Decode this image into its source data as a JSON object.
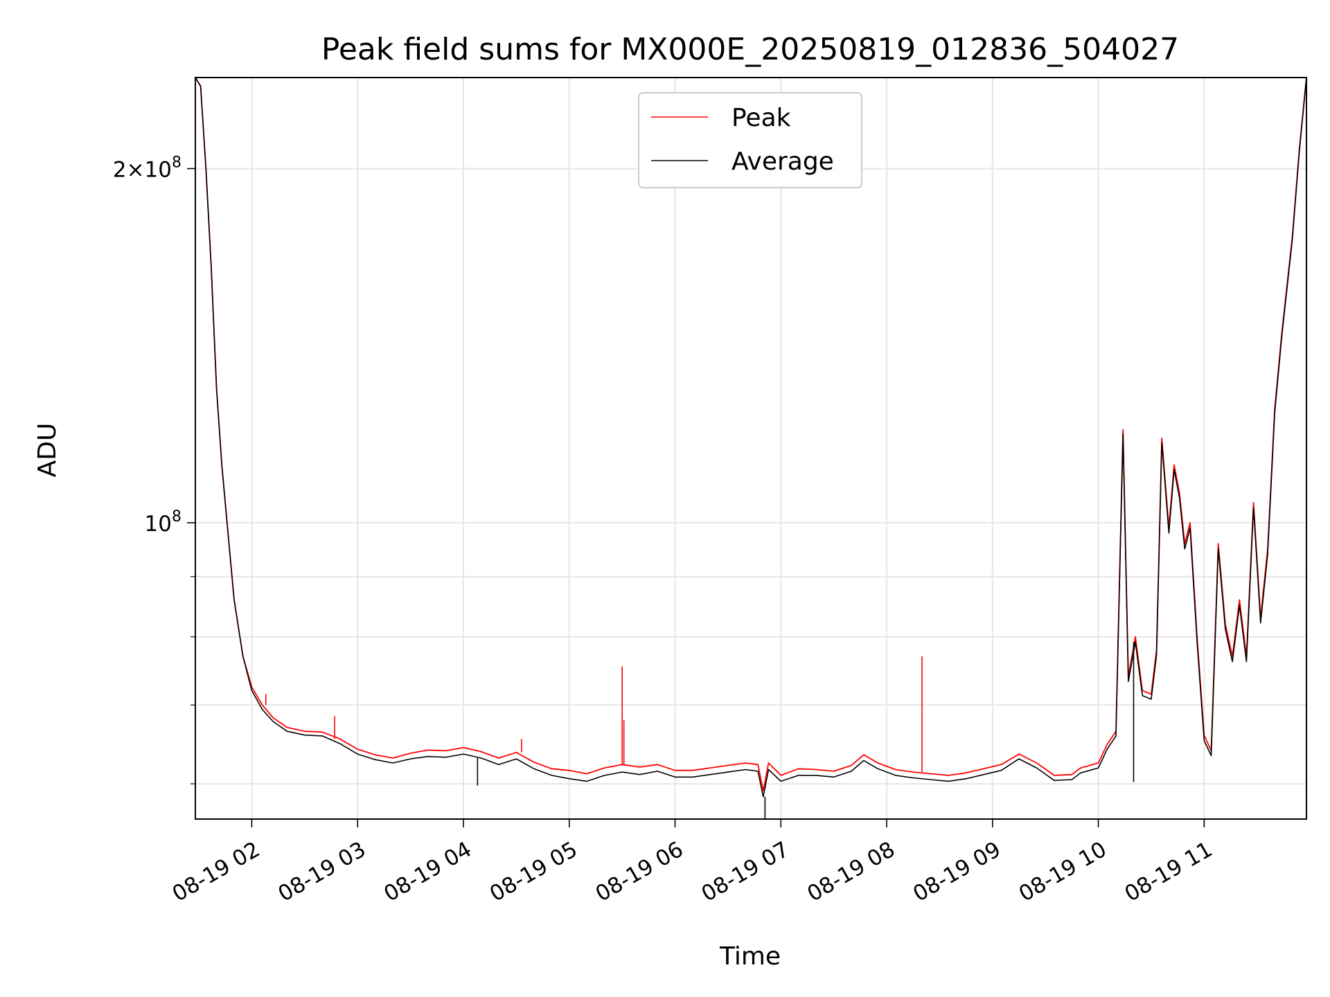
{
  "chart_data": {
    "type": "line",
    "title": "Peak field sums for MX000E_20250819_012836_504027",
    "xlabel": "Time",
    "ylabel": "ADU",
    "yscale": "log",
    "grid": true,
    "legend_placement": "top-center",
    "x_tick_labels": [
      "08-19 02",
      "08-19 03",
      "08-19 04",
      "08-19 05",
      "08-19 06",
      "08-19 07",
      "08-19 08",
      "08-19 09",
      "08-19 10",
      "08-19 11"
    ],
    "y_tick_labels": [
      {
        "value": 200000000,
        "mantissa": "2",
        "times": "×",
        "base": "10",
        "exp": "8"
      },
      {
        "value": 100000000,
        "mantissa": "",
        "times": "",
        "base": "10",
        "exp": "8"
      }
    ],
    "xlim": [
      "2025-08-19 01:28",
      "2025-08-19 11:58"
    ],
    "ylim": [
      56000000,
      239000000
    ],
    "series": [
      {
        "name": "Peak",
        "color": "#ff0000",
        "points": [
          [
            "2025-08-19 01:28",
            239000000
          ],
          [
            "2025-08-19 01:31",
            235000000
          ],
          [
            "2025-08-19 01:34",
            200000000
          ],
          [
            "2025-08-19 01:37",
            165000000
          ],
          [
            "2025-08-19 01:40",
            130000000
          ],
          [
            "2025-08-19 01:43",
            112000000
          ],
          [
            "2025-08-19 01:46",
            100000000
          ],
          [
            "2025-08-19 01:50",
            86000000
          ],
          [
            "2025-08-19 01:55",
            77000000
          ],
          [
            "2025-08-19 02:00",
            72500000
          ],
          [
            "2025-08-19 02:06",
            70000000
          ],
          [
            "2025-08-19 02:12",
            68300000
          ],
          [
            "2025-08-19 02:20",
            67000000
          ],
          [
            "2025-08-19 02:30",
            66500000
          ],
          [
            "2025-08-19 02:40",
            66400000
          ],
          [
            "2025-08-19 02:50",
            65500000
          ],
          [
            "2025-08-19 03:00",
            64200000
          ],
          [
            "2025-08-19 03:10",
            63500000
          ],
          [
            "2025-08-19 03:20",
            63100000
          ],
          [
            "2025-08-19 03:30",
            63700000
          ],
          [
            "2025-08-19 03:40",
            64100000
          ],
          [
            "2025-08-19 03:50",
            64000000
          ],
          [
            "2025-08-19 04:00",
            64400000
          ],
          [
            "2025-08-19 04:10",
            63900000
          ],
          [
            "2025-08-19 04:20",
            63100000
          ],
          [
            "2025-08-19 04:30",
            63800000
          ],
          [
            "2025-08-19 04:40",
            62600000
          ],
          [
            "2025-08-19 04:50",
            61800000
          ],
          [
            "2025-08-19 05:00",
            61600000
          ],
          [
            "2025-08-19 05:10",
            61200000
          ],
          [
            "2025-08-19 05:20",
            61900000
          ],
          [
            "2025-08-19 05:30",
            62300000
          ],
          [
            "2025-08-19 05:40",
            62000000
          ],
          [
            "2025-08-19 05:50",
            62300000
          ],
          [
            "2025-08-19 06:00",
            61600000
          ],
          [
            "2025-08-19 06:10",
            61600000
          ],
          [
            "2025-08-19 06:20",
            61900000
          ],
          [
            "2025-08-19 06:30",
            62200000
          ],
          [
            "2025-08-19 06:40",
            62500000
          ],
          [
            "2025-08-19 06:47",
            62300000
          ],
          [
            "2025-08-19 06:50",
            59200000
          ],
          [
            "2025-08-19 06:53",
            62500000
          ],
          [
            "2025-08-19 07:00",
            61000000
          ],
          [
            "2025-08-19 07:10",
            61800000
          ],
          [
            "2025-08-19 07:20",
            61700000
          ],
          [
            "2025-08-19 07:30",
            61500000
          ],
          [
            "2025-08-19 07:40",
            62200000
          ],
          [
            "2025-08-19 07:47",
            63500000
          ],
          [
            "2025-08-19 07:55",
            62500000
          ],
          [
            "2025-08-19 08:05",
            61700000
          ],
          [
            "2025-08-19 08:15",
            61400000
          ],
          [
            "2025-08-19 08:25",
            61200000
          ],
          [
            "2025-08-19 08:35",
            61000000
          ],
          [
            "2025-08-19 08:45",
            61300000
          ],
          [
            "2025-08-19 08:55",
            61800000
          ],
          [
            "2025-08-19 09:05",
            62300000
          ],
          [
            "2025-08-19 09:15",
            63600000
          ],
          [
            "2025-08-19 09:25",
            62500000
          ],
          [
            "2025-08-19 09:35",
            61000000
          ],
          [
            "2025-08-19 09:45",
            61100000
          ],
          [
            "2025-08-19 09:50",
            61900000
          ],
          [
            "2025-08-19 10:00",
            62500000
          ],
          [
            "2025-08-19 10:05",
            64800000
          ],
          [
            "2025-08-19 10:10",
            66500000
          ],
          [
            "2025-08-19 10:14",
            120000000
          ],
          [
            "2025-08-19 10:17",
            74000000
          ],
          [
            "2025-08-19 10:21",
            80000000
          ],
          [
            "2025-08-19 10:25",
            72000000
          ],
          [
            "2025-08-19 10:30",
            71500000
          ],
          [
            "2025-08-19 10:33",
            78000000
          ],
          [
            "2025-08-19 10:36",
            118000000
          ],
          [
            "2025-08-19 10:40",
            99000000
          ],
          [
            "2025-08-19 10:43",
            112000000
          ],
          [
            "2025-08-19 10:46",
            106000000
          ],
          [
            "2025-08-19 10:49",
            96000000
          ],
          [
            "2025-08-19 10:52",
            100000000
          ],
          [
            "2025-08-19 10:56",
            80000000
          ],
          [
            "2025-08-19 11:00",
            66000000
          ],
          [
            "2025-08-19 11:04",
            64000000
          ],
          [
            "2025-08-19 11:08",
            96000000
          ],
          [
            "2025-08-19 11:12",
            82000000
          ],
          [
            "2025-08-19 11:16",
            77000000
          ],
          [
            "2025-08-19 11:20",
            86000000
          ],
          [
            "2025-08-19 11:24",
            77000000
          ],
          [
            "2025-08-19 11:28",
            104000000
          ],
          [
            "2025-08-19 11:32",
            83000000
          ],
          [
            "2025-08-19 11:36",
            95000000
          ],
          [
            "2025-08-19 11:40",
            125000000
          ],
          [
            "2025-08-19 11:44",
            145000000
          ],
          [
            "2025-08-19 11:50",
            175000000
          ],
          [
            "2025-08-19 11:54",
            208000000
          ],
          [
            "2025-08-19 11:58",
            239000000
          ]
        ]
      },
      {
        "name": "Average",
        "color": "#000000",
        "points": [
          [
            "2025-08-19 01:28",
            239000000
          ],
          [
            "2025-08-19 01:31",
            235000000
          ],
          [
            "2025-08-19 01:34",
            200000000
          ],
          [
            "2025-08-19 01:37",
            165000000
          ],
          [
            "2025-08-19 01:40",
            130000000
          ],
          [
            "2025-08-19 01:43",
            112000000
          ],
          [
            "2025-08-19 01:46",
            100000000
          ],
          [
            "2025-08-19 01:50",
            86000000
          ],
          [
            "2025-08-19 01:55",
            77000000
          ],
          [
            "2025-08-19 02:00",
            72000000
          ],
          [
            "2025-08-19 02:06",
            69400000
          ],
          [
            "2025-08-19 02:12",
            67800000
          ],
          [
            "2025-08-19 02:20",
            66500000
          ],
          [
            "2025-08-19 02:30",
            66000000
          ],
          [
            "2025-08-19 02:40",
            65900000
          ],
          [
            "2025-08-19 02:50",
            64900000
          ],
          [
            "2025-08-19 03:00",
            63600000
          ],
          [
            "2025-08-19 03:10",
            62900000
          ],
          [
            "2025-08-19 03:20",
            62500000
          ],
          [
            "2025-08-19 03:30",
            63000000
          ],
          [
            "2025-08-19 03:40",
            63300000
          ],
          [
            "2025-08-19 03:50",
            63200000
          ],
          [
            "2025-08-19 04:00",
            63600000
          ],
          [
            "2025-08-19 04:10",
            63100000
          ],
          [
            "2025-08-19 04:20",
            62300000
          ],
          [
            "2025-08-19 04:30",
            63000000
          ],
          [
            "2025-08-19 04:40",
            61800000
          ],
          [
            "2025-08-19 04:50",
            61000000
          ],
          [
            "2025-08-19 05:00",
            60600000
          ],
          [
            "2025-08-19 05:10",
            60300000
          ],
          [
            "2025-08-19 05:20",
            61000000
          ],
          [
            "2025-08-19 05:30",
            61400000
          ],
          [
            "2025-08-19 05:40",
            61100000
          ],
          [
            "2025-08-19 05:50",
            61500000
          ],
          [
            "2025-08-19 06:00",
            60800000
          ],
          [
            "2025-08-19 06:10",
            60800000
          ],
          [
            "2025-08-19 06:20",
            61100000
          ],
          [
            "2025-08-19 06:30",
            61400000
          ],
          [
            "2025-08-19 06:40",
            61700000
          ],
          [
            "2025-08-19 06:47",
            61500000
          ],
          [
            "2025-08-19 06:50",
            58500000
          ],
          [
            "2025-08-19 06:53",
            61700000
          ],
          [
            "2025-08-19 07:00",
            60300000
          ],
          [
            "2025-08-19 07:10",
            61000000
          ],
          [
            "2025-08-19 07:20",
            61000000
          ],
          [
            "2025-08-19 07:30",
            60800000
          ],
          [
            "2025-08-19 07:40",
            61500000
          ],
          [
            "2025-08-19 07:47",
            62800000
          ],
          [
            "2025-08-19 07:55",
            61800000
          ],
          [
            "2025-08-19 08:05",
            61000000
          ],
          [
            "2025-08-19 08:15",
            60700000
          ],
          [
            "2025-08-19 08:25",
            60500000
          ],
          [
            "2025-08-19 08:35",
            60300000
          ],
          [
            "2025-08-19 08:45",
            60600000
          ],
          [
            "2025-08-19 08:55",
            61100000
          ],
          [
            "2025-08-19 09:05",
            61600000
          ],
          [
            "2025-08-19 09:15",
            63000000
          ],
          [
            "2025-08-19 09:25",
            61900000
          ],
          [
            "2025-08-19 09:35",
            60400000
          ],
          [
            "2025-08-19 09:45",
            60500000
          ],
          [
            "2025-08-19 09:50",
            61300000
          ],
          [
            "2025-08-19 10:00",
            61900000
          ],
          [
            "2025-08-19 10:05",
            64200000
          ],
          [
            "2025-08-19 10:10",
            65900000
          ],
          [
            "2025-08-19 10:14",
            119000000
          ],
          [
            "2025-08-19 10:17",
            73300000
          ],
          [
            "2025-08-19 10:21",
            79200000
          ],
          [
            "2025-08-19 10:25",
            71300000
          ],
          [
            "2025-08-19 10:30",
            70800000
          ],
          [
            "2025-08-19 10:33",
            77200000
          ],
          [
            "2025-08-19 10:36",
            117000000
          ],
          [
            "2025-08-19 10:40",
            98000000
          ],
          [
            "2025-08-19 10:43",
            111000000
          ],
          [
            "2025-08-19 10:46",
            105000000
          ],
          [
            "2025-08-19 10:49",
            95000000
          ],
          [
            "2025-08-19 10:52",
            99000000
          ],
          [
            "2025-08-19 10:56",
            79200000
          ],
          [
            "2025-08-19 11:00",
            65300000
          ],
          [
            "2025-08-19 11:04",
            63400000
          ],
          [
            "2025-08-19 11:08",
            95000000
          ],
          [
            "2025-08-19 11:12",
            81200000
          ],
          [
            "2025-08-19 11:16",
            76200000
          ],
          [
            "2025-08-19 11:20",
            85100000
          ],
          [
            "2025-08-19 11:24",
            76200000
          ],
          [
            "2025-08-19 11:28",
            103000000
          ],
          [
            "2025-08-19 11:32",
            82200000
          ],
          [
            "2025-08-19 11:36",
            94000000
          ],
          [
            "2025-08-19 11:40",
            124000000
          ],
          [
            "2025-08-19 11:44",
            144000000
          ],
          [
            "2025-08-19 11:50",
            174000000
          ],
          [
            "2025-08-19 11:54",
            207000000
          ],
          [
            "2025-08-19 11:58",
            239000000
          ]
        ]
      }
    ],
    "spikes": [
      {
        "series": "Peak",
        "x": "2025-08-19 05:30",
        "y": 75500000
      },
      {
        "series": "Peak",
        "x": "2025-08-19 05:31",
        "y": 68000000
      },
      {
        "series": "Peak",
        "x": "2025-08-19 08:20",
        "y": 77000000
      },
      {
        "series": "Peak",
        "x": "2025-08-19 02:47",
        "y": 68500000
      },
      {
        "series": "Peak",
        "x": "2025-08-19 02:08",
        "y": 71500000
      },
      {
        "series": "Peak",
        "x": "2025-08-19 04:33",
        "y": 65500000
      },
      {
        "series": "Average",
        "x": "2025-08-19 04:08",
        "y": 59800000
      },
      {
        "series": "Average",
        "x": "2025-08-19 06:51",
        "y": 56000000
      },
      {
        "series": "Average",
        "x": "2025-08-19 10:20",
        "y": 60200000
      }
    ]
  }
}
